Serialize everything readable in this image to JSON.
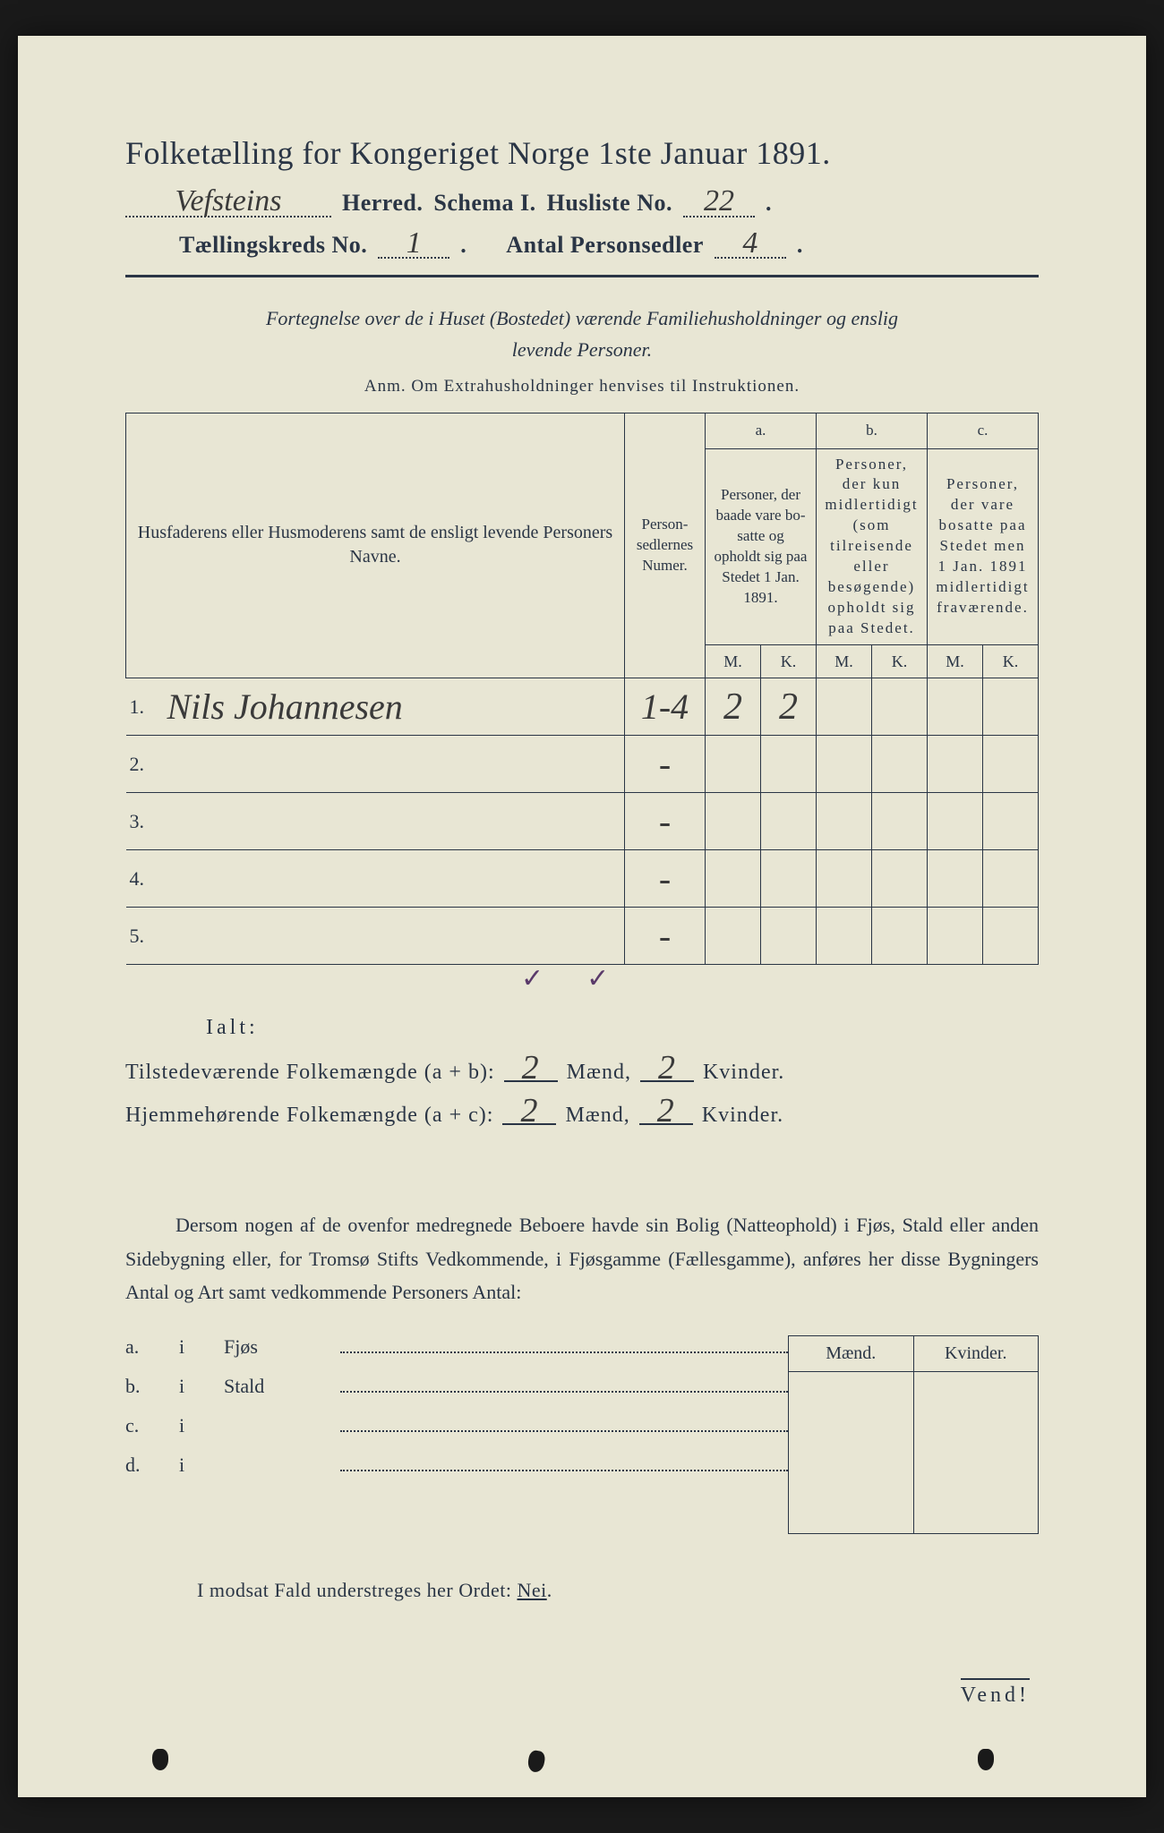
{
  "colors": {
    "paper": "#e8e6d4",
    "ink": "#2a3545",
    "handwriting": "#3a3a3a",
    "tick": "#5a3a6a",
    "background": "#1a1a1a"
  },
  "title": "Folketælling for Kongeriget Norge 1ste Januar 1891.",
  "header": {
    "herred_value": "Vefsteins",
    "herred_label": "Herred.",
    "schema_label": "Schema I.",
    "husliste_label": "Husliste No.",
    "husliste_value": "22",
    "kreds_label": "Tællingskreds No.",
    "kreds_value": "1",
    "antal_label": "Antal Personsedler",
    "antal_value": "4"
  },
  "subtitle_line1": "Fortegnelse over de i Huset (Bostedet) værende Familiehusholdninger og enslig",
  "subtitle_line2": "levende Personer.",
  "anm": "Anm.  Om Extrahusholdninger henvises til Instruktionen.",
  "table": {
    "col_name": "Husfaderens eller Husmode­rens samt de ensligt levende Personers Navne.",
    "col_num": "Person­sedler­nes Numer.",
    "col_a_top": "a.",
    "col_a": "Personer, der baade vare bo­satte og opholdt sig paa Stedet 1 Jan. 1891.",
    "col_b_top": "b.",
    "col_b": "Personer, der kun midler­tidigt (som tilreisende eller besøgende) opholdt sig paa Stedet.",
    "col_c_top": "c.",
    "col_c": "Personer, der vare bosatte paa Stedet men 1 Jan. 1891 midler­tidigt fra­værende.",
    "mk_m": "M.",
    "mk_k": "K.",
    "rows": [
      {
        "n": "1.",
        "name": "Nils Johannesen",
        "num": "1-4",
        "a_m": "2",
        "a_k": "2",
        "b_m": "",
        "b_k": "",
        "c_m": "",
        "c_k": ""
      },
      {
        "n": "2.",
        "name": "",
        "num": "-",
        "a_m": "",
        "a_k": "",
        "b_m": "",
        "b_k": "",
        "c_m": "",
        "c_k": ""
      },
      {
        "n": "3.",
        "name": "",
        "num": "-",
        "a_m": "",
        "a_k": "",
        "b_m": "",
        "b_k": "",
        "c_m": "",
        "c_k": ""
      },
      {
        "n": "4.",
        "name": "",
        "num": "-",
        "a_m": "",
        "a_k": "",
        "b_m": "",
        "b_k": "",
        "c_m": "",
        "c_k": ""
      },
      {
        "n": "5.",
        "name": "",
        "num": "-",
        "a_m": "",
        "a_k": "",
        "b_m": "",
        "b_k": "",
        "c_m": "",
        "c_k": ""
      }
    ],
    "tick1": "✓",
    "tick2": "✓"
  },
  "ialt": {
    "label": "Ialt:",
    "line1_pre": "Tilstedeværende Folkemængde (a + b):",
    "line1_m": "2",
    "line1_mid": "Mænd,",
    "line1_k": "2",
    "line1_end": "Kvinder.",
    "line2_pre": "Hjemmehørende Folkemængde (a + c):",
    "line2_m": "2",
    "line2_mid": "Mænd,",
    "line2_k": "2",
    "line2_end": "Kvinder."
  },
  "paragraph": "Dersom nogen af de ovenfor medregnede Beboere havde sin Bolig (Natte­ophold) i Fjøs, Stald eller anden Sidebygning eller, for Tromsø Stifts Ved­kommende, i Fjøsgamme (Fællesgamme), anføres her disse Bygningers Antal og Art samt vedkommende Personers Antal:",
  "lower": {
    "head_m": "Mænd.",
    "head_k": "Kvinder.",
    "rows": [
      {
        "l": "a.",
        "i": "i",
        "name": "Fjøs"
      },
      {
        "l": "b.",
        "i": "i",
        "name": "Stald"
      },
      {
        "l": "c.",
        "i": "i",
        "name": ""
      },
      {
        "l": "d.",
        "i": "i",
        "name": ""
      }
    ]
  },
  "nei_line_pre": "I modsat Fald understreges her Ordet: ",
  "nei_word": "Nei",
  "vend": "Vend!"
}
